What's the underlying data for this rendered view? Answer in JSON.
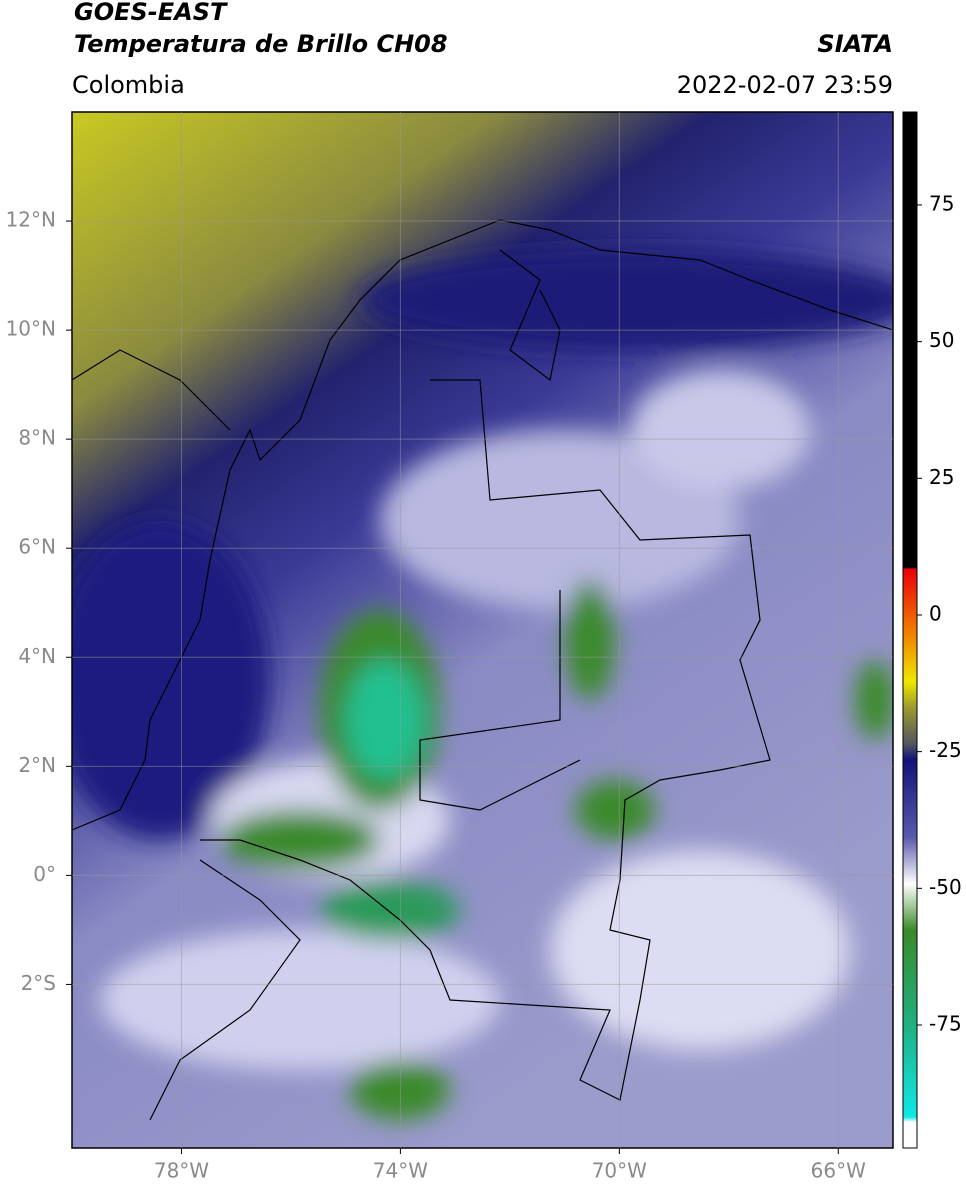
{
  "header": {
    "title": "GOES-EAST",
    "subtitle": "Temperatura de Brillo CH08",
    "source": "SIATA",
    "region": "Colombia",
    "datetime": "2022-02-07 23:59"
  },
  "map": {
    "lonlim": [
      -80,
      -65
    ],
    "latlim": [
      -5,
      14
    ],
    "grid": true,
    "lonticks": [
      {
        "value": -78,
        "label": "78°W"
      },
      {
        "value": -74,
        "label": "74°W"
      },
      {
        "value": -70,
        "label": "70°W"
      },
      {
        "value": -66,
        "label": "66°W"
      }
    ],
    "latticks": [
      {
        "value": 12,
        "label": "12°N"
      },
      {
        "value": 10,
        "label": "10°N"
      },
      {
        "value": 8,
        "label": "8°N"
      },
      {
        "value": 6,
        "label": "6°N"
      },
      {
        "value": 4,
        "label": "4°N"
      },
      {
        "value": 2,
        "label": "2°N"
      },
      {
        "value": 0,
        "label": "0°"
      },
      {
        "value": -2,
        "label": "2°S"
      }
    ]
  },
  "colorbar": {
    "lim": [
      -97.5,
      92
    ],
    "ticks": [
      75,
      50,
      25,
      0,
      -25,
      -50,
      -75
    ]
  }
}
